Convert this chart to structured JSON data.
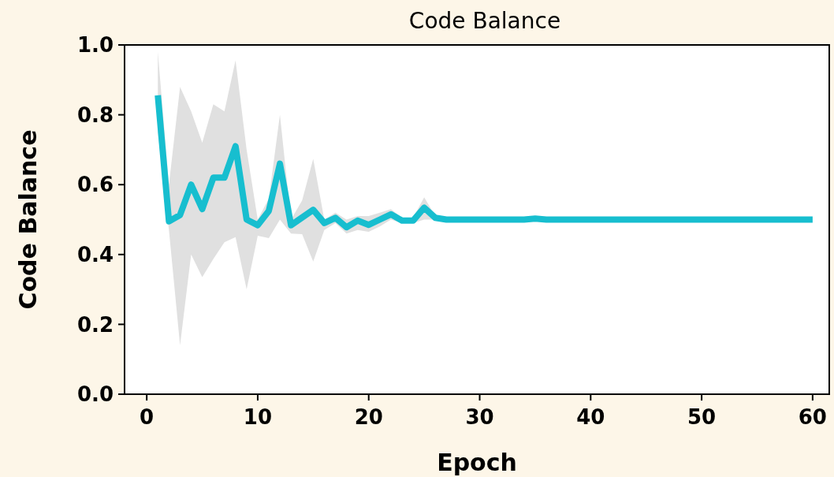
{
  "chart_data": {
    "type": "line",
    "title": "Code Balance",
    "xlabel": "Epoch",
    "ylabel": "Code Balance",
    "x": [
      1,
      2,
      3,
      4,
      5,
      6,
      7,
      8,
      9,
      10,
      11,
      12,
      13,
      14,
      15,
      16,
      17,
      18,
      19,
      20,
      21,
      22,
      23,
      24,
      25,
      26,
      27,
      28,
      29,
      30,
      31,
      32,
      33,
      34,
      35,
      36,
      37,
      38,
      39,
      40,
      41,
      42,
      43,
      44,
      45,
      46,
      47,
      48,
      49,
      50,
      51,
      52,
      53,
      54,
      55,
      56,
      57,
      58,
      59,
      60
    ],
    "series": [
      {
        "color": "#17becf",
        "values": [
          0.856,
          0.495,
          0.513,
          0.6,
          0.53,
          0.62,
          0.62,
          0.71,
          0.5,
          0.484,
          0.525,
          0.66,
          0.484,
          0.506,
          0.528,
          0.49,
          0.505,
          0.478,
          0.497,
          0.485,
          0.5,
          0.515,
          0.497,
          0.497,
          0.534,
          0.505,
          0.5,
          0.5,
          0.5,
          0.5,
          0.5,
          0.5,
          0.5,
          0.5,
          0.503,
          0.5,
          0.5,
          0.5,
          0.5,
          0.5,
          0.5,
          0.5,
          0.5,
          0.5,
          0.5,
          0.5,
          0.5,
          0.5,
          0.5,
          0.5,
          0.5,
          0.5,
          0.5,
          0.5,
          0.5,
          0.5,
          0.5,
          0.5,
          0.5,
          0.5
        ],
        "lower": [
          0.75,
          0.47,
          0.14,
          0.4,
          0.335,
          0.387,
          0.435,
          0.45,
          0.3,
          0.454,
          0.447,
          0.5,
          0.46,
          0.458,
          0.38,
          0.47,
          0.49,
          0.46,
          0.47,
          0.465,
          0.48,
          0.5,
          0.49,
          0.49,
          0.5,
          0.5,
          0.5,
          0.5,
          0.5,
          0.5,
          0.5,
          0.5,
          0.5,
          0.5,
          0.5,
          0.5,
          0.5,
          0.5,
          0.5,
          0.5,
          0.5,
          0.5,
          0.5,
          0.5,
          0.5,
          0.5,
          0.5,
          0.5,
          0.5,
          0.5,
          0.5,
          0.5,
          0.5,
          0.5,
          0.5,
          0.5,
          0.5,
          0.5,
          0.5,
          0.5
        ],
        "upper": [
          0.98,
          0.6,
          0.88,
          0.81,
          0.72,
          0.83,
          0.81,
          0.956,
          0.7,
          0.5,
          0.56,
          0.8,
          0.5,
          0.555,
          0.674,
          0.5,
          0.52,
          0.5,
          0.51,
          0.51,
          0.52,
          0.53,
          0.505,
          0.505,
          0.564,
          0.51,
          0.5,
          0.5,
          0.5,
          0.5,
          0.5,
          0.5,
          0.5,
          0.5,
          0.506,
          0.5,
          0.5,
          0.5,
          0.5,
          0.5,
          0.5,
          0.5,
          0.5,
          0.5,
          0.5,
          0.5,
          0.5,
          0.5,
          0.5,
          0.5,
          0.5,
          0.5,
          0.5,
          0.5,
          0.5,
          0.5,
          0.5,
          0.5,
          0.5,
          0.5
        ]
      }
    ],
    "xlim": [
      -2,
      61.5
    ],
    "xticks": [
      0,
      10,
      20,
      30,
      40,
      50,
      60
    ],
    "ylim": [
      0,
      1
    ],
    "yticks": [
      {
        "value": 0,
        "label": "0.0"
      },
      {
        "value": 0.2,
        "label": "0.2"
      },
      {
        "value": 0.4,
        "label": "0.4"
      },
      {
        "value": 0.6,
        "label": "0.6"
      },
      {
        "value": 0.8,
        "label": "0.8"
      },
      {
        "value": 1,
        "label": "1.0"
      }
    ]
  }
}
